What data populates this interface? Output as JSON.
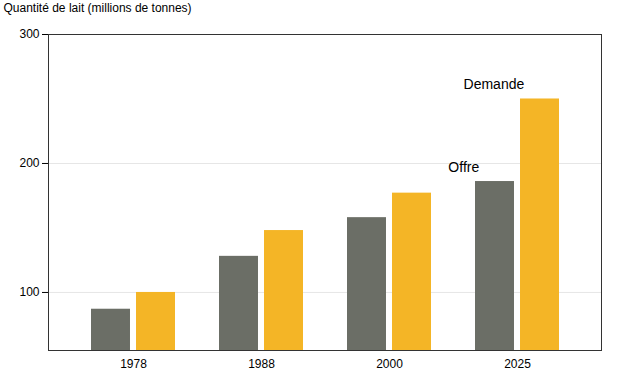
{
  "chart_data": {
    "type": "bar",
    "y_label": "Quantité de lait (millions de tonnes)",
    "categories": [
      "1978",
      "1988",
      "2000",
      "2025"
    ],
    "series": [
      {
        "name": "Offre",
        "color": "#6b6e66",
        "values": [
          87,
          128,
          158,
          186
        ]
      },
      {
        "name": "Demande",
        "color": "#f4b526",
        "values": [
          100,
          148,
          177,
          250
        ]
      }
    ],
    "ylim": [
      55,
      300
    ],
    "yticks": [
      100,
      200,
      300
    ],
    "grid": true
  }
}
